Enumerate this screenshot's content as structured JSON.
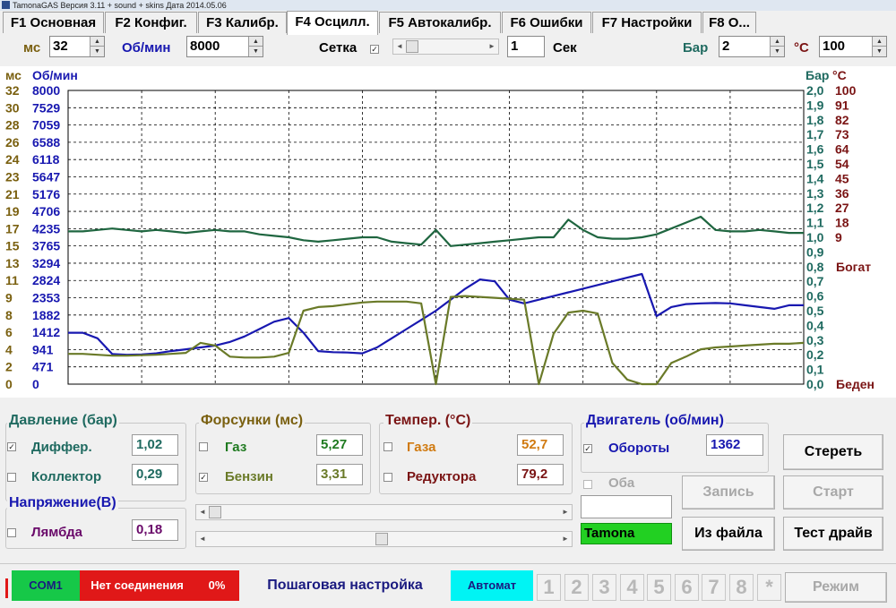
{
  "window": {
    "title": "TamonaGAS  Версия 3.11 + sound + skins  Дата 2014.05.06"
  },
  "tabs": [
    {
      "label": "F1 Основная"
    },
    {
      "label": "F2 Конфиг."
    },
    {
      "label": "F3 Калибр."
    },
    {
      "label": "F4 Осцилл."
    },
    {
      "label": "F5 Автокалибр."
    },
    {
      "label": "F6 Ошибки"
    },
    {
      "label": "F7 Настройки"
    },
    {
      "label": "F8 О..."
    }
  ],
  "toolbar": {
    "ms_label": "мс",
    "ms_value": "32",
    "rpm_label": "Об/мин",
    "rpm_value": "8000",
    "grid_label": "Сетка",
    "sec_value": "1",
    "sec_label": "Сек",
    "bar_label": "Бар",
    "bar_value": "2",
    "temp_label": "°С",
    "temp_value": "100",
    "grid_scroll_position": 0.0
  },
  "chart_data": {
    "type": "line",
    "axis_titles": {
      "left_ms": "мс",
      "left_rpm": "Об/мин",
      "right_bar": "Бар",
      "right_temp": "°С"
    },
    "y_left_ms": [
      "32",
      "30",
      "28",
      "26",
      "24",
      "23",
      "21",
      "19",
      "17",
      "15",
      "13",
      "11",
      "9",
      "8",
      "6",
      "4",
      "2",
      "0"
    ],
    "y_left_rpm": [
      "8000",
      "7529",
      "7059",
      "6588",
      "6118",
      "5647",
      "5176",
      "4706",
      "4235",
      "3765",
      "3294",
      "2824",
      "2353",
      "1882",
      "1412",
      "941",
      "471",
      "0"
    ],
    "y_right_bar": [
      "2,0",
      "1,9",
      "1,8",
      "1,7",
      "1,6",
      "1,5",
      "1,4",
      "1,3",
      "1,2",
      "1,1",
      "1,0",
      "0,9",
      "0,8",
      "0,7",
      "0,6",
      "0,5",
      "0,4",
      "0,3",
      "0,2",
      "0,1",
      "0,0"
    ],
    "y_right_temp": [
      "100",
      "91",
      "82",
      "73",
      "64",
      "54",
      "45",
      "36",
      "27",
      "18",
      "9"
    ],
    "lambda_labels": {
      "rich": "Богат",
      "lean": "Беден"
    },
    "grid": true,
    "x": [
      0,
      1,
      2,
      3,
      4,
      5,
      6,
      7,
      8,
      9,
      10,
      11,
      12,
      13,
      14,
      15,
      16,
      17,
      18,
      19,
      20,
      21,
      22,
      23,
      24,
      25,
      26,
      27,
      28,
      29,
      30,
      31,
      32,
      33,
      34,
      35,
      36,
      37,
      38,
      39,
      40,
      41,
      42,
      43,
      44,
      45,
      46,
      47,
      48,
      49,
      50
    ],
    "series": [
      {
        "color": "#1818b0",
        "axis": "rpm",
        "values": [
          1400,
          1400,
          1250,
          820,
          800,
          810,
          840,
          900,
          950,
          1000,
          1050,
          1150,
          1300,
          1500,
          1700,
          1800,
          1400,
          900,
          870,
          860,
          840,
          1000,
          1250,
          1500,
          1750,
          2000,
          2300,
          2600,
          2850,
          2800,
          2300,
          2200,
          2300,
          2400,
          2500,
          2600,
          2700,
          2800,
          2900,
          3000,
          1850,
          2100,
          2180,
          2200,
          2210,
          2200,
          2150,
          2100,
          2050,
          2150,
          2150
        ]
      },
      {
        "color": "#6a7a28",
        "axis": "benzin_ms",
        "values": [
          3.3,
          3.3,
          3.2,
          3.1,
          3.1,
          3.15,
          3.2,
          3.3,
          3.4,
          4.5,
          4.2,
          3.0,
          2.9,
          2.9,
          3.0,
          3.4,
          8.0,
          8.4,
          8.5,
          8.7,
          8.9,
          9.0,
          9.0,
          9.0,
          8.8,
          0.0,
          9.5,
          9.6,
          9.5,
          9.4,
          9.3,
          9.2,
          0.0,
          5.5,
          7.8,
          8.0,
          7.7,
          2.3,
          0.5,
          0.0,
          0.0,
          2.3,
          3.0,
          3.8,
          4.0,
          4.1,
          4.2,
          4.3,
          4.4,
          4.4,
          4.5
        ]
      },
      {
        "color": "#1f6640",
        "axis": "bar",
        "values": [
          1.04,
          1.04,
          1.05,
          1.06,
          1.05,
          1.04,
          1.05,
          1.04,
          1.03,
          1.04,
          1.05,
          1.04,
          1.04,
          1.02,
          1.01,
          1.0,
          0.98,
          0.97,
          0.98,
          0.99,
          1.0,
          1.0,
          0.97,
          0.96,
          0.95,
          1.05,
          0.94,
          0.95,
          0.96,
          0.97,
          0.98,
          0.99,
          1.0,
          1.0,
          1.12,
          1.05,
          1.0,
          0.99,
          0.99,
          1.0,
          1.02,
          1.06,
          1.1,
          1.14,
          1.05,
          1.04,
          1.04,
          1.05,
          1.04,
          1.03,
          1.03
        ]
      }
    ]
  },
  "pressure": {
    "title": "Давление (бар)",
    "diff_label": "Диффер.",
    "diff_value": "1,02",
    "diff_checked": true,
    "coll_label": "Коллектор",
    "coll_value": "0,29",
    "coll_checked": false
  },
  "injectors": {
    "title": "Форсунки (мс)",
    "gas_label": "Газ",
    "gas_value": "5,27",
    "gas_checked": false,
    "petrol_label": "Бензин",
    "petrol_value": "3,31",
    "petrol_checked": true
  },
  "temps": {
    "title": "Темпер. (°С)",
    "gas_label": "Газа",
    "gas_value": "52,7",
    "reducer_label": "Редуктора",
    "reducer_value": "79,2"
  },
  "engine": {
    "title": "Двигатель (об/мин)",
    "rpm_label": "Обороты",
    "rpm_value": "1362",
    "both_label": "Оба"
  },
  "voltage": {
    "title": "Напряжение(В)",
    "lambda_label": "Лямбда",
    "lambda_value": "0,18"
  },
  "scrollbars": {
    "top_position": 0.0,
    "bottom_position": 0.49
  },
  "buttons": {
    "clear": "Стереть",
    "record": "Запись",
    "start": "Старт",
    "from_file": "Из файла",
    "test_drive": "Тест драйв",
    "mode": "Режим"
  },
  "tamona_label": "Tamona",
  "status": {
    "port": "COM1",
    "connection": "Нет соединения",
    "percent": "0%",
    "step_setup": "Пошаговая настройка",
    "auto": "Автомат",
    "numbers": [
      "1",
      "2",
      "3",
      "4",
      "5",
      "6",
      "7",
      "8",
      "*"
    ]
  },
  "colors": {
    "ms": "#7a6010",
    "rpm": "#1818b0",
    "bar": "#1f6a60",
    "temp": "#7a1414",
    "gas_temp": "#d07a10",
    "reducer_temp": "#7a1414",
    "lambda": "#6a0a6a",
    "status_green": "#16c848",
    "status_red": "#e01818",
    "status_cyan": "#00f4f4",
    "tamona_green": "#22d022"
  }
}
